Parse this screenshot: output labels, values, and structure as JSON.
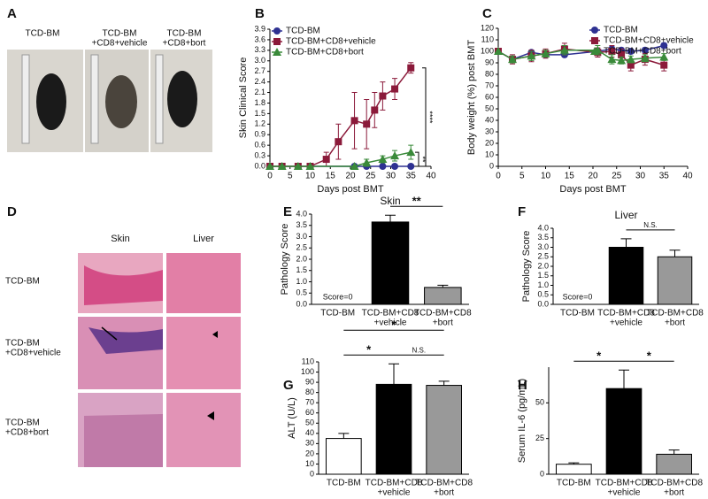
{
  "figure": {
    "panel_labels": [
      "A",
      "B",
      "C",
      "D",
      "E",
      "F",
      "G",
      "H"
    ],
    "photo_a_labels": [
      [
        "TCD-BM"
      ],
      [
        "TCD-BM",
        "+CD8+vehicle"
      ],
      [
        "TCD-BM",
        "+CD8+bort"
      ]
    ],
    "histology_columns": [
      "Skin",
      "Liver"
    ],
    "histology_rows": [
      [
        "TCD-BM"
      ],
      [
        "TCD-BM",
        "+CD8+vehicle"
      ],
      [
        "TCD-BM",
        "+CD8+bort"
      ]
    ]
  },
  "chart_data": [
    {
      "type": "line",
      "ylabel": "Skin Clinical Score",
      "xlabel": "Days post BMT",
      "xlim": [
        0,
        40
      ],
      "xticks": [
        0,
        5,
        10,
        15,
        20,
        25,
        30,
        35,
        40
      ],
      "ylim": [
        0,
        3.9
      ],
      "yticks": [
        {
          "value": 0,
          "label": "0.0"
        },
        0.3,
        0.6,
        0.9,
        1.2,
        1.5,
        1.8,
        2.1,
        2.4,
        2.7,
        {
          "value": 3,
          "label": "3.0"
        },
        3.3,
        3.6,
        3.9
      ],
      "legend": "upper left",
      "series": [
        {
          "name": "TCD-BM",
          "color": "#2e3192",
          "marker": "circle",
          "x": [
            0,
            3,
            7,
            10,
            21,
            24,
            28,
            31,
            35
          ],
          "values": [
            0,
            0,
            0,
            0,
            0,
            0,
            0,
            0,
            0
          ],
          "errors": [
            0,
            0,
            0,
            0,
            0,
            0,
            0,
            0,
            0
          ]
        },
        {
          "name": "TCD-BM+CD8+vehicle",
          "color": "#8b1a3a",
          "marker": "square",
          "x": [
            0,
            3,
            7,
            10,
            14,
            17,
            21,
            24,
            26,
            28,
            31,
            35
          ],
          "values": [
            0,
            0,
            0,
            0,
            0.2,
            0.7,
            1.3,
            1.2,
            1.6,
            2.0,
            2.2,
            2.8
          ],
          "errors": [
            0,
            0,
            0,
            0,
            0.2,
            0.5,
            0.8,
            0.7,
            0.5,
            0.4,
            0.3,
            0.15
          ]
        },
        {
          "name": "TCD-BM+CD8+bort",
          "color": "#3a8a3a",
          "marker": "triangle",
          "x": [
            0,
            3,
            7,
            10,
            21,
            24,
            28,
            31,
            35
          ],
          "values": [
            0,
            0,
            0,
            0,
            0,
            0.1,
            0.2,
            0.3,
            0.4
          ],
          "errors": [
            0,
            0,
            0,
            0,
            0,
            0.1,
            0.1,
            0.15,
            0.2
          ]
        }
      ],
      "brackets": [
        {
          "text": "****",
          "from": 1,
          "to": 0
        },
        {
          "text": "**",
          "from": 2,
          "to": 0
        }
      ]
    },
    {
      "type": "line",
      "ylabel": "Body weight (%) post BMT",
      "xlabel": "Days post BMT",
      "xlim": [
        0,
        40
      ],
      "xticks": [
        0,
        5,
        10,
        15,
        20,
        25,
        30,
        35,
        40
      ],
      "ylim": [
        0,
        120
      ],
      "yticks": [
        0,
        10,
        20,
        30,
        40,
        50,
        60,
        70,
        80,
        90,
        100,
        110,
        120
      ],
      "legend": "upper right",
      "series": [
        {
          "name": "TCD-BM",
          "color": "#2e3192",
          "marker": "circle",
          "x": [
            0,
            3,
            7,
            10,
            14,
            21,
            24,
            26,
            28,
            31,
            35
          ],
          "values": [
            100,
            93,
            99,
            97,
            97,
            100,
            102,
            101,
            100,
            101,
            105
          ],
          "errors": [
            0,
            2,
            2,
            2,
            2,
            2,
            2,
            2,
            2,
            2,
            2
          ]
        },
        {
          "name": "TCD-BM+CD8+vehicle",
          "color": "#8b1a3a",
          "marker": "square",
          "x": [
            0,
            3,
            7,
            10,
            14,
            21,
            24,
            26,
            28,
            31,
            35
          ],
          "values": [
            100,
            93,
            96,
            98,
            102,
            99,
            100,
            97,
            88,
            93,
            88
          ],
          "errors": [
            0,
            4,
            5,
            4,
            5,
            4,
            5,
            5,
            5,
            5,
            5
          ]
        },
        {
          "name": "TCD-BM+CD8+bort",
          "color": "#3a8a3a",
          "marker": "triangle",
          "x": [
            0,
            3,
            7,
            10,
            14,
            21,
            24,
            26,
            28,
            31,
            35
          ],
          "values": [
            100,
            93,
            96,
            98,
            101,
            101,
            93,
            92,
            93,
            94,
            95
          ],
          "errors": [
            0,
            3,
            4,
            3,
            4,
            4,
            4,
            3,
            3,
            3,
            3
          ]
        }
      ]
    },
    {
      "type": "bar",
      "title": "Skin",
      "ylabel": "Pathology Score",
      "categories": [
        [
          "TCD-BM"
        ],
        [
          "TCD-BM+CD8",
          "+vehicle"
        ],
        [
          "TCD-BM+CD8",
          "+bort"
        ]
      ],
      "values": [
        0,
        3.65,
        0.75
      ],
      "errors": [
        0,
        0.3,
        0.1
      ],
      "colors": [
        "#ffffff",
        "#000000",
        "#999999"
      ],
      "ylim": [
        0,
        4
      ],
      "yticks": [
        {
          "value": 0,
          "label": "0.0"
        },
        0.5,
        {
          "value": 1,
          "label": "1.0"
        },
        1.5,
        {
          "value": 2,
          "label": "2.0"
        },
        2.5,
        {
          "value": 3,
          "label": "3.0"
        },
        3.5,
        {
          "value": 4,
          "label": "4.0"
        }
      ],
      "note": "Score=0",
      "brackets": [
        {
          "text": "**",
          "from": 1,
          "to": 2
        }
      ]
    },
    {
      "type": "bar",
      "title": "Liver",
      "ylabel": "Pathology Score",
      "categories": [
        [
          "TCD-BM"
        ],
        [
          "TCD-BM+CD8",
          "+vehicle"
        ],
        [
          "TCD-BM+CD8",
          "+bort"
        ]
      ],
      "values": [
        0,
        3.0,
        2.5
      ],
      "errors": [
        0,
        0.45,
        0.35
      ],
      "colors": [
        "#ffffff",
        "#000000",
        "#999999"
      ],
      "ylim": [
        0,
        4
      ],
      "yticks": [
        {
          "value": 0,
          "label": "0.0"
        },
        0.5,
        {
          "value": 1,
          "label": "1.0"
        },
        1.5,
        {
          "value": 2,
          "label": "2.0"
        },
        2.5,
        {
          "value": 3,
          "label": "3.0"
        },
        3.5,
        {
          "value": 4,
          "label": "4.0"
        }
      ],
      "note": "Score=0",
      "brackets": [
        {
          "text": "N.S.",
          "from": 1,
          "to": 2
        }
      ]
    },
    {
      "type": "bar",
      "ylabel": "ALT (U/L)",
      "categories": [
        [
          "TCD-BM"
        ],
        [
          "TCD-BM+CD8",
          "+vehicle"
        ],
        [
          "TCD-BM+CD8",
          "+bort"
        ]
      ],
      "values": [
        35,
        88,
        87
      ],
      "errors": [
        5,
        20,
        4
      ],
      "colors": [
        "#ffffff",
        "#000000",
        "#999999"
      ],
      "ylim": [
        0,
        110
      ],
      "yticks": [
        0,
        10,
        20,
        30,
        40,
        50,
        60,
        70,
        80,
        90,
        100,
        110
      ],
      "brackets": [
        {
          "text": "*",
          "from": 0,
          "to": 1
        },
        {
          "text": "N.S.",
          "from": 1,
          "to": 2
        },
        {
          "text": "*",
          "from": 0,
          "to": 2
        }
      ]
    },
    {
      "type": "bar",
      "ylabel": "Serum IL-6 (pg/mL)",
      "categories": [
        [
          "TCD-BM"
        ],
        [
          "TCD-BM+CD8",
          "+vehicle"
        ],
        [
          "TCD-BM+CD8",
          "+bort"
        ]
      ],
      "values": [
        7,
        60,
        14
      ],
      "errors": [
        1,
        13,
        3
      ],
      "colors": [
        "#ffffff",
        "#000000",
        "#999999"
      ],
      "ylim": [
        0,
        75
      ],
      "yticks": [
        0,
        25,
        50
      ],
      "brackets": [
        {
          "text": "*",
          "from": 0,
          "to": 1
        },
        {
          "text": "*",
          "from": 1,
          "to": 2
        }
      ]
    }
  ]
}
